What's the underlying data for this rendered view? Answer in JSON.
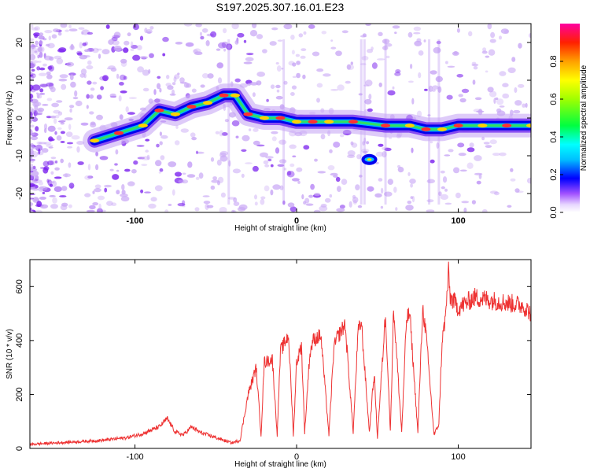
{
  "title": "S197.2025.307.16.01.E23",
  "chart_data": [
    {
      "type": "heatmap",
      "xlabel": "Height of straight line (km)",
      "ylabel": "Frequency (Hz)",
      "xlim": [
        -165,
        145
      ],
      "ylim": [
        -25,
        25
      ],
      "xticks": [
        -100,
        0,
        100
      ],
      "yticks": [
        -20,
        -10,
        0,
        10,
        20
      ],
      "colorbar": {
        "label": "Normalized spectral amplitude",
        "range": [
          0,
          1
        ],
        "ticks": [
          0.0,
          0.2,
          0.4,
          0.6,
          0.8
        ]
      },
      "ridge": [
        {
          "x": -125,
          "y": -6
        },
        {
          "x": -110,
          "y": -4
        },
        {
          "x": -95,
          "y": -2
        },
        {
          "x": -85,
          "y": 2
        },
        {
          "x": -75,
          "y": 1
        },
        {
          "x": -65,
          "y": 3
        },
        {
          "x": -55,
          "y": 4
        },
        {
          "x": -45,
          "y": 6
        },
        {
          "x": -38,
          "y": 6
        },
        {
          "x": -30,
          "y": 1
        },
        {
          "x": -20,
          "y": 0
        },
        {
          "x": -10,
          "y": 0
        },
        {
          "x": 0,
          "y": -1
        },
        {
          "x": 10,
          "y": -1
        },
        {
          "x": 20,
          "y": -1
        },
        {
          "x": 35,
          "y": -1
        },
        {
          "x": 45,
          "y": -11
        },
        {
          "x": 55,
          "y": -2
        },
        {
          "x": 70,
          "y": -2
        },
        {
          "x": 80,
          "y": -3
        },
        {
          "x": 90,
          "y": -3
        },
        {
          "x": 100,
          "y": -2
        },
        {
          "x": 115,
          "y": -2
        },
        {
          "x": 130,
          "y": -2
        },
        {
          "x": 145,
          "y": -2
        }
      ]
    },
    {
      "type": "line",
      "xlabel": "Height of straight line (km)",
      "ylabel": "SNR (10 * v/v)",
      "xlim": [
        -165,
        145
      ],
      "ylim": [
        0,
        700
      ],
      "xticks": [
        -100,
        0,
        100
      ],
      "yticks": [
        0,
        200,
        400,
        600
      ],
      "series": [
        {
          "name": "SNR",
          "color": "#ee3333",
          "x": [
            -165,
            -150,
            -135,
            -120,
            -105,
            -95,
            -85,
            -80,
            -75,
            -70,
            -65,
            -60,
            -55,
            -50,
            -45,
            -40,
            -35,
            -30,
            -25,
            -22,
            -20,
            -15,
            -12,
            -10,
            -5,
            -2,
            0,
            3,
            5,
            8,
            10,
            15,
            20,
            23,
            25,
            30,
            35,
            38,
            40,
            45,
            48,
            50,
            55,
            58,
            60,
            65,
            68,
            70,
            75,
            78,
            80,
            85,
            88,
            90,
            92,
            94,
            95,
            98,
            100,
            110,
            120,
            130,
            140,
            145
          ],
          "values": [
            15,
            20,
            25,
            30,
            40,
            55,
            80,
            110,
            60,
            50,
            80,
            60,
            50,
            40,
            30,
            20,
            30,
            200,
            300,
            50,
            320,
            330,
            50,
            360,
            420,
            50,
            320,
            380,
            60,
            340,
            400,
            420,
            50,
            370,
            410,
            460,
            60,
            430,
            470,
            60,
            280,
            40,
            500,
            60,
            520,
            60,
            480,
            500,
            60,
            520,
            430,
            50,
            90,
            400,
            480,
            650,
            560,
            540,
            520,
            560,
            550,
            540,
            530,
            500
          ]
        }
      ]
    }
  ]
}
